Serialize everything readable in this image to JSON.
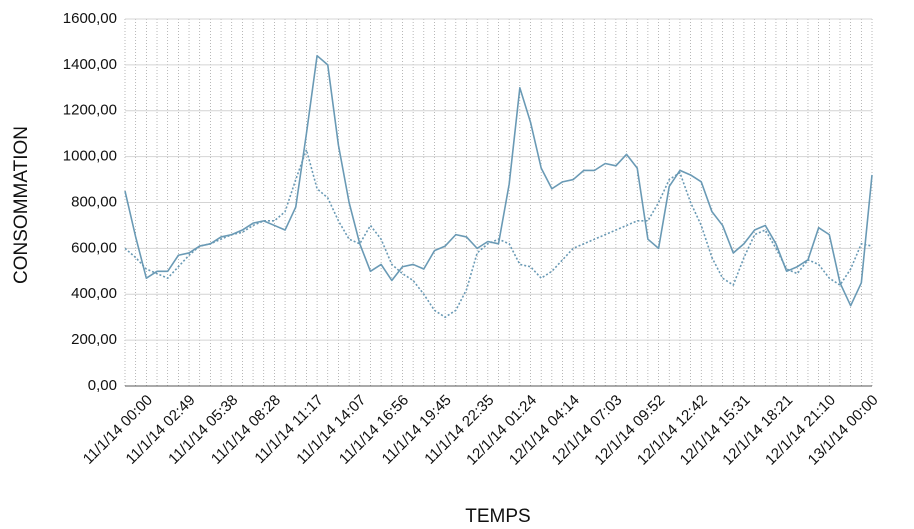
{
  "chart_data": {
    "type": "line",
    "y_label": "CONSOMMATION",
    "x_label": "TEMPS",
    "categories": [
      null,
      null,
      "11/1/14 00:00",
      null,
      null,
      null,
      "11/1/14 02:49",
      null,
      null,
      null,
      "11/1/14 05:38",
      null,
      null,
      null,
      "11/1/14 08:28",
      null,
      null,
      null,
      "11/1/14 11:17",
      null,
      null,
      null,
      "11/1/14 14:07",
      null,
      null,
      null,
      "11/1/14 16:56",
      null,
      null,
      null,
      "11/1/14 19:45",
      null,
      null,
      null,
      "11/1/14 22:35",
      null,
      null,
      null,
      "12/1/14 01:24",
      null,
      null,
      null,
      "12/1/14 04:14",
      null,
      null,
      null,
      "12/1/14 07:03",
      null,
      null,
      null,
      "12/1/14 09:52",
      null,
      null,
      null,
      "12/1/14 12:42",
      null,
      null,
      null,
      "12/1/14 15:31",
      null,
      null,
      null,
      "12/1/14 18:21",
      null,
      null,
      null,
      "12/1/14 21:10",
      null,
      null,
      null,
      "13/1/14 00:00"
    ],
    "series": [
      {
        "color": "#6a9ab5",
        "style": "solid",
        "values": [
          850,
          650,
          470,
          500,
          500,
          570,
          580,
          610,
          620,
          650,
          660,
          680,
          710,
          720,
          700,
          680,
          780,
          1100,
          1440,
          1400,
          1050,
          800,
          620,
          500,
          530,
          460,
          520,
          530,
          510,
          590,
          610,
          660,
          650,
          600,
          630,
          620,
          880,
          1300,
          1150,
          950,
          860,
          890,
          900,
          940,
          940,
          970,
          960,
          1010,
          950,
          640,
          600,
          870,
          940,
          920,
          890,
          760,
          700,
          580,
          620,
          680,
          700,
          620,
          500,
          520,
          550,
          690,
          660,
          450,
          350,
          450,
          920
        ]
      },
      {
        "color": "#6a9ab5",
        "style": "dotted",
        "values": [
          600,
          560,
          510,
          490,
          470,
          520,
          570,
          610,
          620,
          640,
          660,
          670,
          700,
          720,
          720,
          760,
          900,
          1030,
          860,
          820,
          720,
          640,
          620,
          700,
          640,
          530,
          490,
          460,
          400,
          330,
          300,
          330,
          420,
          580,
          620,
          640,
          620,
          530,
          520,
          470,
          500,
          550,
          600,
          620,
          640,
          660,
          680,
          700,
          720,
          720,
          800,
          900,
          930,
          800,
          700,
          560,
          470,
          440,
          560,
          660,
          680,
          600,
          510,
          490,
          550,
          530,
          470,
          440,
          510,
          620,
          610
        ]
      }
    ],
    "ylim": [
      0,
      1600
    ],
    "yticks": [
      {
        "value": 0,
        "label": "0,00"
      },
      {
        "value": 200,
        "label": "200,00"
      },
      {
        "value": 400,
        "label": "400,00"
      },
      {
        "value": 600,
        "label": "600,00"
      },
      {
        "value": 800,
        "label": "800,00"
      },
      {
        "value": 1000,
        "label": "1000,00"
      },
      {
        "value": 1200,
        "label": "1200,00"
      },
      {
        "value": 1400,
        "label": "1400,00"
      },
      {
        "value": 1600,
        "label": "1600,00"
      }
    ],
    "grid": true
  }
}
